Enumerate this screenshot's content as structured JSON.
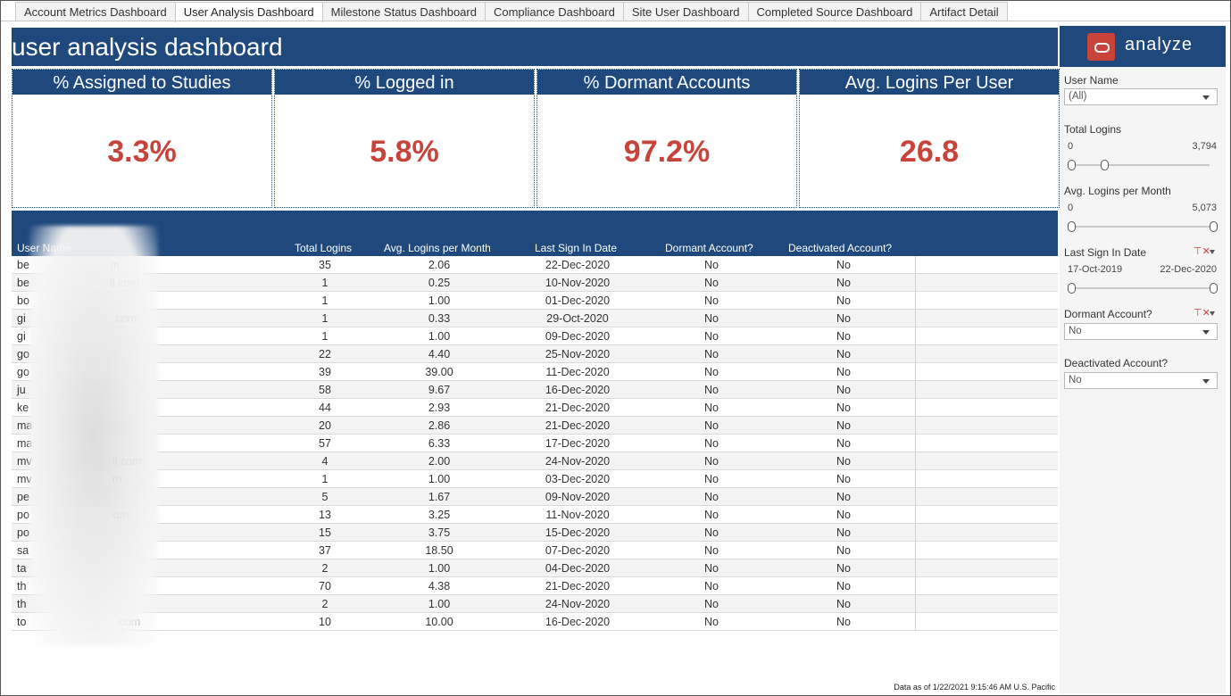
{
  "tabs": [
    {
      "label": "Account Metrics Dashboard",
      "active": false
    },
    {
      "label": "User Analysis Dashboard",
      "active": true
    },
    {
      "label": "Milestone Status Dashboard",
      "active": false
    },
    {
      "label": "Compliance Dashboard",
      "active": false
    },
    {
      "label": "Site User Dashboard",
      "active": false
    },
    {
      "label": "Completed Source Dashboard",
      "active": false
    },
    {
      "label": "Artifact Detail",
      "active": false
    }
  ],
  "header": {
    "title": "user analysis dashboard"
  },
  "kpis": [
    {
      "label": "% Assigned to Studies",
      "value": "3.3%"
    },
    {
      "label": "% Logged in",
      "value": "5.8%"
    },
    {
      "label": "% Dormant Accounts",
      "value": "97.2%"
    },
    {
      "label": "Avg. Logins Per User",
      "value": "26.8"
    }
  ],
  "table": {
    "columns": [
      "User Name",
      "Total Logins",
      "Avg. Logins per Month",
      "Last Sign In Date",
      "Dormant Account?",
      "Deactivated Account?"
    ],
    "rows": [
      [
        "be                          m",
        "35",
        "2.06",
        "22-Dec-2020",
        "No",
        "No"
      ],
      [
        "be                          il.com",
        "1",
        "0.25",
        "10-Nov-2020",
        "No",
        "No"
      ],
      [
        "bo",
        "1",
        "1.00",
        "01-Dec-2020",
        "No",
        "No"
      ],
      [
        "gi                            .com",
        "1",
        "0.33",
        "29-Oct-2020",
        "No",
        "No"
      ],
      [
        "gi",
        "1",
        "1.00",
        "09-Dec-2020",
        "No",
        "No"
      ],
      [
        "go",
        "22",
        "4.40",
        "25-Nov-2020",
        "No",
        "No"
      ],
      [
        "go",
        "39",
        "39.00",
        "11-Dec-2020",
        "No",
        "No"
      ],
      [
        "ju",
        "58",
        "9.67",
        "16-Dec-2020",
        "No",
        "No"
      ],
      [
        "ke",
        "44",
        "2.93",
        "21-Dec-2020",
        "No",
        "No"
      ],
      [
        "ma",
        "20",
        "2.86",
        "21-Dec-2020",
        "No",
        "No"
      ],
      [
        "ma",
        "57",
        "6.33",
        "17-Dec-2020",
        "No",
        "No"
      ],
      [
        "mv                          il.com",
        "4",
        "2.00",
        "24-Nov-2020",
        "No",
        "No"
      ],
      [
        "mv                          m",
        "1",
        "1.00",
        "03-Dec-2020",
        "No",
        "No"
      ],
      [
        "pe",
        "5",
        "1.67",
        "09-Nov-2020",
        "No",
        "No"
      ],
      [
        "po                           om",
        "13",
        "3.25",
        "11-Nov-2020",
        "No",
        "No"
      ],
      [
        "po",
        "15",
        "3.75",
        "15-Dec-2020",
        "No",
        "No"
      ],
      [
        "sa",
        "37",
        "18.50",
        "07-Dec-2020",
        "No",
        "No"
      ],
      [
        "ta",
        "2",
        "1.00",
        "04-Dec-2020",
        "No",
        "No"
      ],
      [
        "th",
        "70",
        "4.38",
        "21-Dec-2020",
        "No",
        "No"
      ],
      [
        "th",
        "2",
        "1.00",
        "24-Nov-2020",
        "No",
        "No"
      ],
      [
        "to                             .com",
        "10",
        "10.00",
        "16-Dec-2020",
        "No",
        "No"
      ]
    ]
  },
  "footer": {
    "text": "Data as of 1/22/2021 9:15:46 AM U.S. Pacific"
  },
  "panel": {
    "brand": "analyze",
    "user_name": {
      "label": "User Name",
      "value": "(All)"
    },
    "total_logins": {
      "label": "Total Logins",
      "min": "0",
      "max": "3,794"
    },
    "avg_logins": {
      "label": "Avg. Logins per Month",
      "min": "0",
      "max": "5,073"
    },
    "last_sign_in": {
      "label": "Last Sign In Date",
      "min": "17-Oct-2019",
      "max": "22-Dec-2020"
    },
    "dormant": {
      "label": "Dormant Account?",
      "value": "No"
    },
    "deactivated": {
      "label": "Deactivated Account?",
      "value": "No"
    }
  }
}
